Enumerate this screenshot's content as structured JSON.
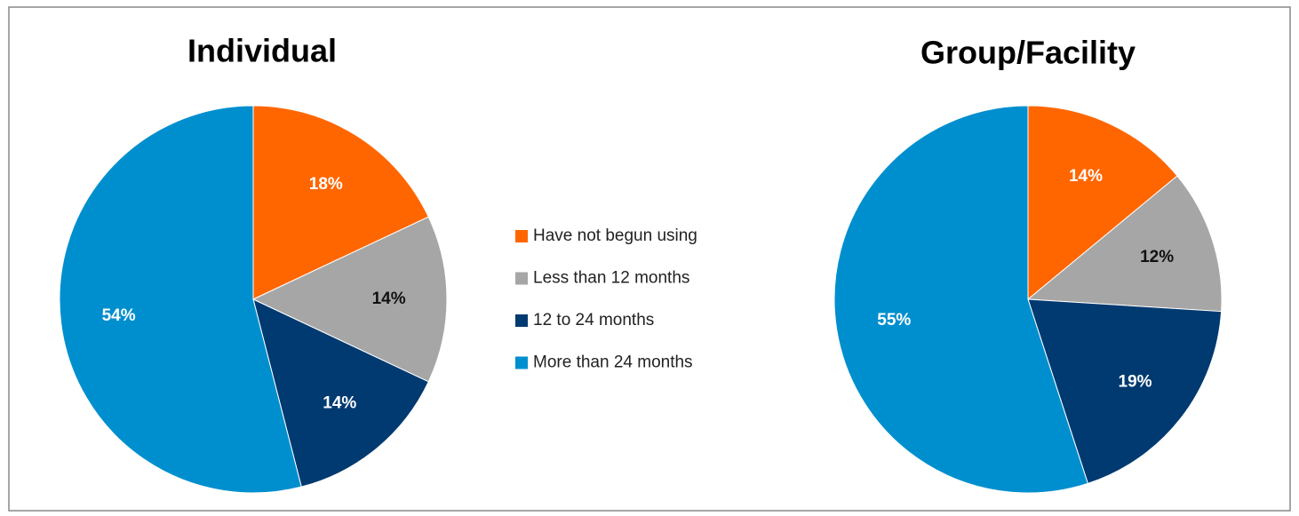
{
  "legend": {
    "categories": [
      "Have not begun using",
      "Less than 12 months",
      "12 to 24 months",
      "More than 24 months"
    ],
    "colors": [
      "#ff6600",
      "#a6a6a6",
      "#003a70",
      "#008fce"
    ]
  },
  "chart_data": [
    {
      "type": "pie",
      "title": "Individual",
      "values": [
        18,
        14,
        14,
        54
      ],
      "value_labels": [
        "18%",
        "14%",
        "14%",
        "54%"
      ]
    },
    {
      "type": "pie",
      "title": "Group/Facility",
      "values": [
        14,
        12,
        19,
        55
      ],
      "value_labels": [
        "14%",
        "12%",
        "19%",
        "55%"
      ]
    }
  ]
}
